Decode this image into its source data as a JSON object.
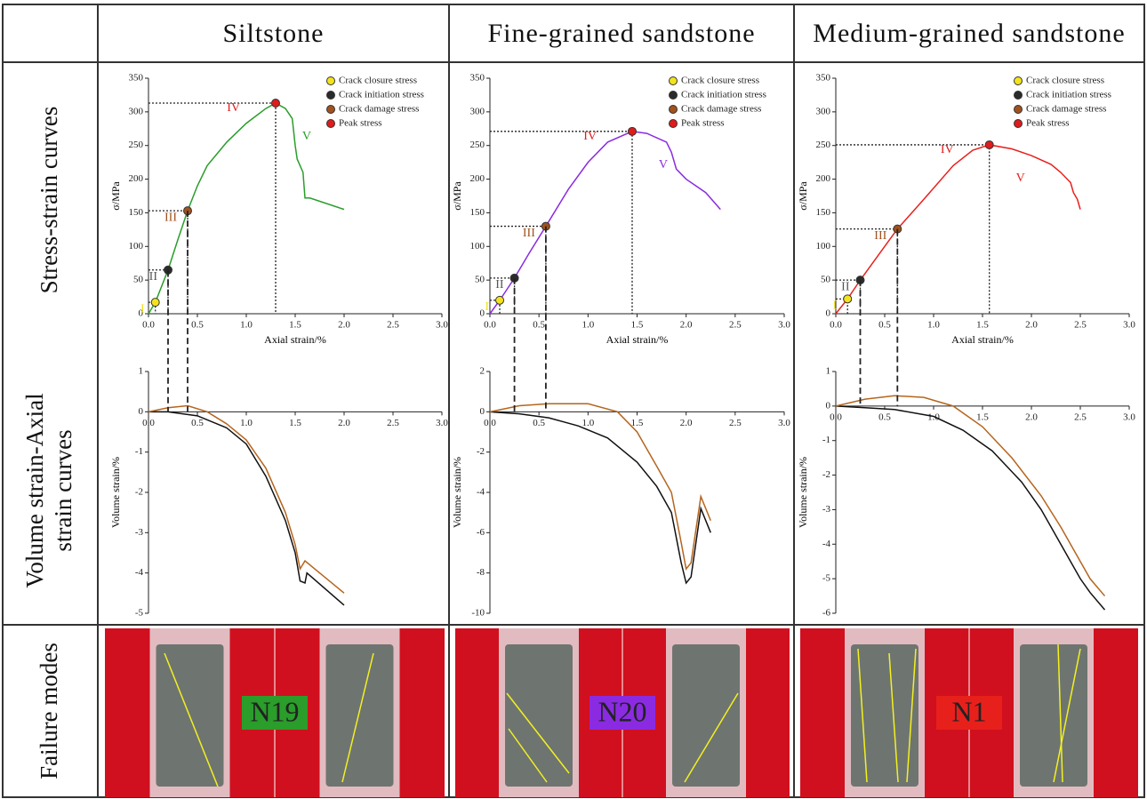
{
  "figure": {
    "columns": [
      "Siltstone",
      "Fine-grained sandstone",
      "Medium-grained sandstone"
    ],
    "rows": [
      "Stress-strain curves",
      "Volume strain-Axial strain curves",
      "Failure modes"
    ],
    "specimens": [
      "N19",
      "N20",
      "N1"
    ]
  },
  "chart_data": [
    {
      "type": "line",
      "xlabel": "Axial strain/%",
      "ylabel": "σ/MPa",
      "xlim": [
        0,
        3
      ],
      "ylim": [
        0,
        350
      ],
      "xticks": [
        {
          "value": 0,
          "label": "0.0"
        },
        0.5,
        {
          "value": 1,
          "label": "1.0"
        },
        1.5,
        {
          "value": 2,
          "label": "2.0"
        },
        2.5,
        {
          "value": 3,
          "label": "3.0"
        }
      ],
      "yticks": [
        0,
        50,
        100,
        150,
        200,
        250,
        300,
        350
      ],
      "series": [
        {
          "color": "#2a9d2a",
          "x": [
            0,
            0.07,
            0.2,
            0.3,
            0.4,
            0.5,
            0.6,
            0.8,
            1.0,
            1.2,
            1.3,
            1.4,
            1.47,
            1.5,
            1.52,
            1.58,
            1.6,
            1.65,
            2.0
          ],
          "values": [
            0,
            17,
            65,
            110,
            153,
            190,
            220,
            255,
            283,
            305,
            313,
            305,
            290,
            250,
            230,
            210,
            172,
            172,
            155
          ]
        },
        {
          "name": "Crack closure stress",
          "type": "scatter",
          "color": "#f2e31c",
          "x": [
            0.07
          ],
          "values": [
            17
          ]
        },
        {
          "name": "Crack initiation stress",
          "type": "scatter",
          "color": "#2b2b2b",
          "x": [
            0.2
          ],
          "values": [
            65
          ]
        },
        {
          "name": "Crack damage stress",
          "type": "scatter",
          "color": "#a0521d",
          "x": [
            0.4
          ],
          "values": [
            153
          ]
        },
        {
          "name": "Peak stress",
          "type": "scatter",
          "color": "#e01b1b",
          "x": [
            1.3
          ],
          "values": [
            313
          ]
        }
      ],
      "annotations": [
        "I",
        "II",
        "III",
        "IV",
        "V"
      ]
    },
    {
      "type": "line",
      "xlabel": "Axial strain/%",
      "ylabel": "σ/MPa",
      "xlim": [
        0,
        3
      ],
      "ylim": [
        0,
        350
      ],
      "xticks": [
        {
          "value": 0,
          "label": "0.0"
        },
        0.5,
        {
          "value": 1,
          "label": "1.0"
        },
        1.5,
        {
          "value": 2,
          "label": "2.0"
        },
        2.5,
        {
          "value": 3,
          "label": "3.0"
        }
      ],
      "yticks": [
        0,
        50,
        100,
        150,
        200,
        250,
        300,
        350
      ],
      "series": [
        {
          "color": "#8a2be2",
          "x": [
            0,
            0.1,
            0.25,
            0.4,
            0.57,
            0.8,
            1.0,
            1.2,
            1.45,
            1.6,
            1.8,
            1.85,
            1.9,
            2.0,
            2.1,
            2.2,
            2.35
          ],
          "values": [
            0,
            20,
            53,
            90,
            130,
            185,
            225,
            255,
            271,
            268,
            255,
            240,
            215,
            200,
            190,
            180,
            155
          ]
        },
        {
          "name": "Crack closure stress",
          "type": "scatter",
          "color": "#f2e31c",
          "x": [
            0.1
          ],
          "values": [
            20
          ]
        },
        {
          "name": "Crack initiation stress",
          "type": "scatter",
          "color": "#2b2b2b",
          "x": [
            0.25
          ],
          "values": [
            53
          ]
        },
        {
          "name": "Crack damage stress",
          "type": "scatter",
          "color": "#a0521d",
          "x": [
            0.57
          ],
          "values": [
            130
          ]
        },
        {
          "name": "Peak stress",
          "type": "scatter",
          "color": "#e01b1b",
          "x": [
            1.45
          ],
          "values": [
            271
          ]
        }
      ],
      "annotations": [
        "I",
        "II",
        "III",
        "IV",
        "V"
      ]
    },
    {
      "type": "line",
      "xlabel": "Axial strain/%",
      "ylabel": "σ/MPa",
      "xlim": [
        0,
        3
      ],
      "ylim": [
        0,
        350
      ],
      "xticks": [
        {
          "value": 0,
          "label": "0.0"
        },
        0.5,
        {
          "value": 1,
          "label": "1.0"
        },
        1.5,
        {
          "value": 2,
          "label": "2.0"
        },
        2.5,
        {
          "value": 3,
          "label": "3.0"
        }
      ],
      "yticks": [
        0,
        50,
        100,
        150,
        200,
        250,
        300,
        350
      ],
      "series": [
        {
          "color": "#e8201c",
          "x": [
            0,
            0.12,
            0.25,
            0.45,
            0.63,
            0.9,
            1.2,
            1.4,
            1.57,
            1.8,
            2.0,
            2.2,
            2.3,
            2.4,
            2.43,
            2.47,
            2.5
          ],
          "values": [
            0,
            22,
            50,
            90,
            126,
            170,
            220,
            243,
            251,
            245,
            235,
            222,
            210,
            195,
            180,
            170,
            155
          ]
        },
        {
          "name": "Crack closure stress",
          "type": "scatter",
          "color": "#f2e31c",
          "x": [
            0.12
          ],
          "values": [
            22
          ]
        },
        {
          "name": "Crack initiation stress",
          "type": "scatter",
          "color": "#2b2b2b",
          "x": [
            0.25
          ],
          "values": [
            50
          ]
        },
        {
          "name": "Crack damage stress",
          "type": "scatter",
          "color": "#a0521d",
          "x": [
            0.63
          ],
          "values": [
            126
          ]
        },
        {
          "name": "Peak stress",
          "type": "scatter",
          "color": "#e01b1b",
          "x": [
            1.57
          ],
          "values": [
            251
          ]
        }
      ],
      "annotations": [
        "I",
        "II",
        "III",
        "IV",
        "V"
      ]
    },
    {
      "type": "line",
      "ylabel": "Volume strain/%",
      "xlim": [
        0,
        3
      ],
      "ylim": [
        -5,
        1
      ],
      "xticks": [
        {
          "value": 0,
          "label": "0.0"
        },
        0.5,
        {
          "value": 1,
          "label": "1.0"
        },
        1.5,
        {
          "value": 2,
          "label": "2.0"
        },
        2.5,
        {
          "value": 3,
          "label": "3.0"
        }
      ],
      "yticks": [
        -5,
        -4,
        -3,
        -2,
        -1,
        0,
        1
      ],
      "series": [
        {
          "color": "#111111",
          "x": [
            0,
            0.2,
            0.5,
            0.8,
            1.0,
            1.2,
            1.4,
            1.5,
            1.55,
            1.6,
            1.62,
            2.0
          ],
          "values": [
            0,
            0,
            -0.1,
            -0.4,
            -0.8,
            -1.6,
            -2.7,
            -3.5,
            -4.2,
            -4.25,
            -4.0,
            -4.8
          ]
        },
        {
          "color": "#b5651d",
          "x": [
            0,
            0.2,
            0.4,
            0.6,
            0.8,
            1.0,
            1.2,
            1.4,
            1.5,
            1.55,
            1.6,
            2.0
          ],
          "values": [
            0,
            0.1,
            0.15,
            0,
            -0.3,
            -0.7,
            -1.4,
            -2.5,
            -3.3,
            -3.9,
            -3.7,
            -4.5
          ]
        }
      ]
    },
    {
      "type": "line",
      "ylabel": "Volume strain/%",
      "xlim": [
        0,
        3
      ],
      "ylim": [
        -10,
        2
      ],
      "xticks": [
        {
          "value": 0,
          "label": "0.0"
        },
        0.5,
        {
          "value": 1,
          "label": "1.0"
        },
        1.5,
        {
          "value": 2,
          "label": "2.0"
        },
        2.5,
        {
          "value": 3,
          "label": "3.0"
        }
      ],
      "yticks": [
        -10,
        -8,
        -6,
        -4,
        -2,
        0,
        2
      ],
      "series": [
        {
          "color": "#111111",
          "x": [
            0,
            0.3,
            0.6,
            0.9,
            1.2,
            1.5,
            1.7,
            1.85,
            1.95,
            2.0,
            2.05,
            2.15,
            2.25
          ],
          "values": [
            0,
            -0.1,
            -0.3,
            -0.7,
            -1.3,
            -2.5,
            -3.7,
            -5,
            -7.5,
            -8.5,
            -8.2,
            -4.8,
            -6
          ]
        },
        {
          "color": "#b5651d",
          "x": [
            0,
            0.3,
            0.6,
            1.0,
            1.3,
            1.5,
            1.7,
            1.85,
            1.95,
            2.0,
            2.05,
            2.15,
            2.25
          ],
          "values": [
            0,
            0.3,
            0.4,
            0.4,
            0,
            -1,
            -2.7,
            -4,
            -6.5,
            -7.8,
            -7.5,
            -4.2,
            -5.4
          ]
        }
      ]
    },
    {
      "type": "line",
      "ylabel": "Volume strain/%",
      "xlim": [
        0,
        3
      ],
      "ylim": [
        -6,
        1
      ],
      "xticks": [
        {
          "value": 0,
          "label": "0.0"
        },
        0.5,
        {
          "value": 1,
          "label": "1.0"
        },
        1.5,
        {
          "value": 2,
          "label": "2.0"
        },
        2.5,
        {
          "value": 3,
          "label": "3.0"
        }
      ],
      "yticks": [
        -6,
        -5,
        -4,
        -3,
        -2,
        -1,
        0,
        1
      ],
      "series": [
        {
          "color": "#111111",
          "x": [
            0,
            0.3,
            0.6,
            1.0,
            1.3,
            1.6,
            1.9,
            2.1,
            2.3,
            2.5,
            2.6,
            2.75
          ],
          "values": [
            0,
            -0.05,
            -0.1,
            -0.3,
            -0.7,
            -1.3,
            -2.2,
            -3.0,
            -4.0,
            -5.0,
            -5.4,
            -5.9
          ]
        },
        {
          "color": "#b5651d",
          "x": [
            0,
            0.3,
            0.6,
            0.9,
            1.2,
            1.5,
            1.8,
            2.1,
            2.3,
            2.5,
            2.6,
            2.75
          ],
          "values": [
            0,
            0.2,
            0.3,
            0.25,
            0,
            -0.6,
            -1.5,
            -2.6,
            -3.5,
            -4.5,
            -5.0,
            -5.5
          ]
        }
      ]
    }
  ]
}
